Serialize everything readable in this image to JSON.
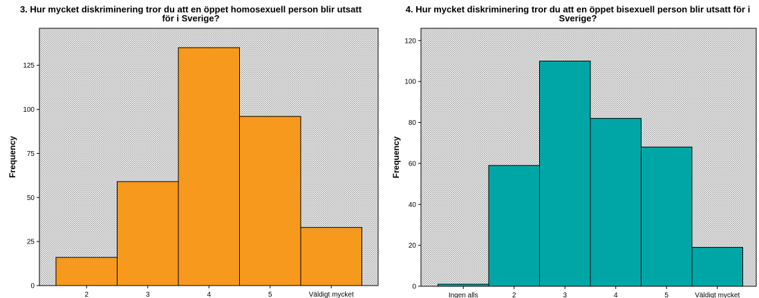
{
  "chart_data": [
    {
      "type": "bar",
      "title": "3. Hur mycket diskriminering tror du att en öppet homosexuell person blir utsatt\nför i Sverige?",
      "xlabel": "",
      "ylabel": "Frequency",
      "categories": [
        "2",
        "3",
        "4",
        "5",
        "Väldigt mycket"
      ],
      "values": [
        16,
        59,
        135,
        96,
        33
      ],
      "ylim": [
        0,
        146
      ],
      "yticks": [
        0,
        25,
        50,
        75,
        100,
        125
      ],
      "grid": false,
      "bar_color": "#f7991c",
      "plot_pattern": "crosshatch"
    },
    {
      "type": "bar",
      "title": "4. Hur mycket diskriminering tror du att en öppet bisexuell person blir utsatt för i\nSverige?",
      "xlabel": "",
      "ylabel": "Frequency",
      "categories": [
        "Ingen alls",
        "2",
        "3",
        "4",
        "5",
        "Väldigt mycket"
      ],
      "values": [
        1,
        59,
        110,
        82,
        68,
        19
      ],
      "ylim": [
        0,
        126
      ],
      "yticks": [
        0,
        20,
        40,
        60,
        80,
        100,
        120
      ],
      "grid": false,
      "bar_color": "#00a6a6",
      "plot_pattern": "crosshatch"
    }
  ]
}
